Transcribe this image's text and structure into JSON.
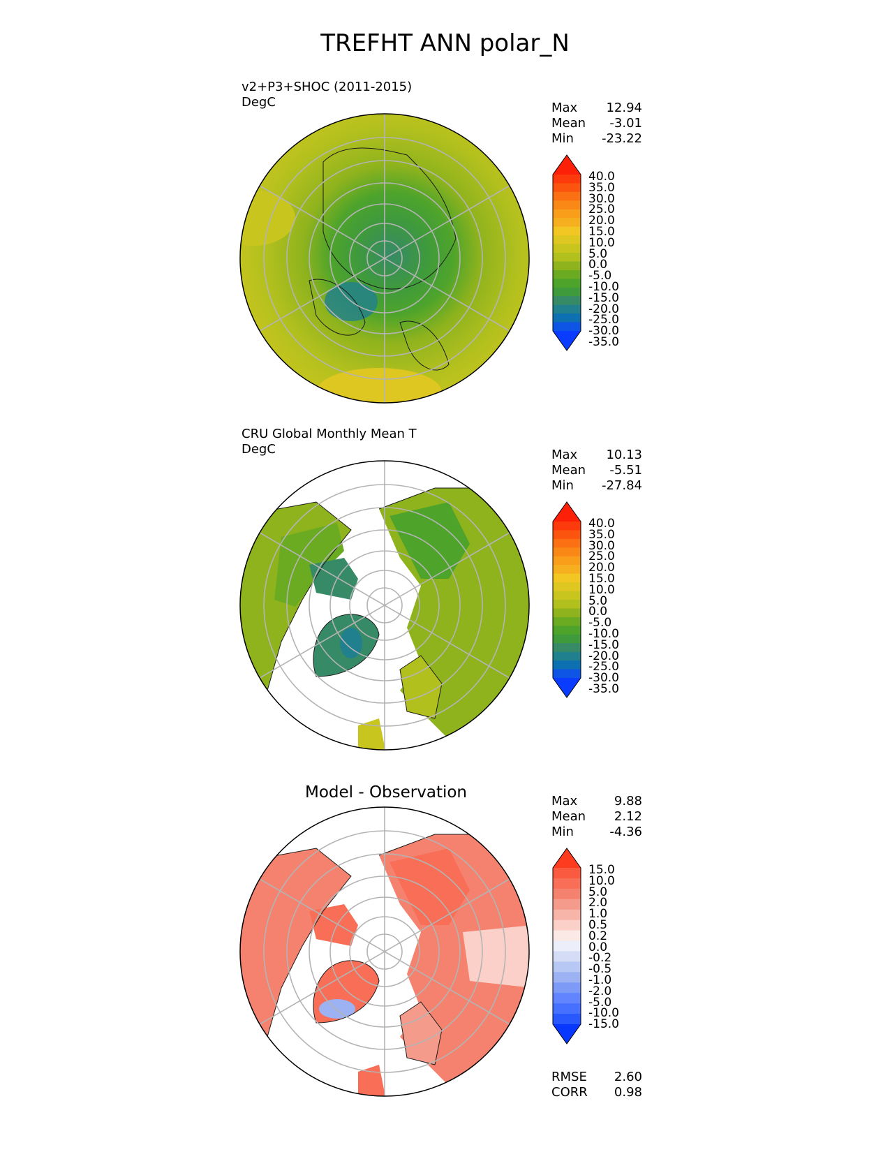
{
  "title": "TREFHT ANN polar_N",
  "colors": {
    "temp_levels": [
      "#0a3cff",
      "#0e55e6",
      "#0d70b0",
      "#20808e",
      "#368a66",
      "#3f9a3c",
      "#4ea42b",
      "#6aab21",
      "#8fb31d",
      "#b2c01e",
      "#c8c51e",
      "#dec720",
      "#f2c623",
      "#f6b01f",
      "#f89e1a",
      "#f98817",
      "#fa7013",
      "#fb540f",
      "#fc3a0b",
      "#fd2008"
    ],
    "diff_levels": [
      "#0837ff",
      "#2a58ff",
      "#4670ff",
      "#6285ff",
      "#7d9af6",
      "#9cb2f2",
      "#b8c8f4",
      "#d4dcf6",
      "#eceff9",
      "#fbe9e6",
      "#fad0c8",
      "#f7b4a8",
      "#f59b8b",
      "#f5826f",
      "#f86e57",
      "#fa5a40",
      "#fc3b1f"
    ]
  },
  "panels": [
    {
      "title_line1": "v2+P3+SHOC (2011-2015)",
      "title_line2": "DegC",
      "stats": {
        "max_label": "Max",
        "max": "12.94",
        "mean_label": "Mean",
        "mean": "-3.01",
        "min_label": "Min",
        "min": "-23.22"
      },
      "colorbar_labels": [
        "40.0",
        "35.0",
        "30.0",
        "25.0",
        "20.0",
        "15.0",
        "10.0",
        "5.0",
        "0.0",
        "-5.0",
        "-10.0",
        "-15.0",
        "-20.0",
        "-25.0",
        "-30.0",
        "-35.0"
      ],
      "map_type": "model"
    },
    {
      "title_line1": "CRU Global Monthly Mean T",
      "title_line2": "DegC",
      "stats": {
        "max_label": "Max",
        "max": "10.13",
        "mean_label": "Mean",
        "mean": "-5.51",
        "min_label": "Min",
        "min": "-27.84"
      },
      "colorbar_labels": [
        "40.0",
        "35.0",
        "30.0",
        "25.0",
        "20.0",
        "15.0",
        "10.0",
        "5.0",
        "0.0",
        "-5.0",
        "-10.0",
        "-15.0",
        "-20.0",
        "-25.0",
        "-30.0",
        "-35.0"
      ],
      "map_type": "obs"
    },
    {
      "title_center": "Model - Observation",
      "stats": {
        "max_label": "Max",
        "max": "9.88",
        "mean_label": "Mean",
        "mean": "2.12",
        "min_label": "Min",
        "min": "-4.36"
      },
      "colorbar_labels": [
        "15.0",
        "10.0",
        "5.0",
        "2.0",
        "1.0",
        "0.5",
        "0.2",
        "0.0",
        "-0.2",
        "-0.5",
        "-1.0",
        "-2.0",
        "-5.0",
        "-10.0",
        "-15.0"
      ],
      "map_type": "diff",
      "metrics": {
        "rmse_label": "RMSE",
        "rmse": "2.60",
        "corr_label": "CORR",
        "corr": "0.98"
      }
    }
  ]
}
